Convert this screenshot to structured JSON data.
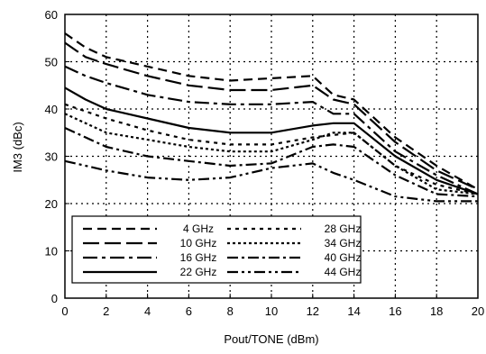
{
  "chart_data": {
    "type": "line",
    "xlabel": "Pout/TONE (dBm)",
    "ylabel": "IM3 (dBc)",
    "xlim": [
      0,
      20
    ],
    "ylim": [
      0,
      60
    ],
    "x_ticks": [
      "0",
      "2",
      "4",
      "6",
      "8",
      "10",
      "12",
      "14",
      "16",
      "18",
      "20"
    ],
    "y_ticks": [
      "0",
      "10",
      "20",
      "30",
      "40",
      "50",
      "60"
    ],
    "grid": true,
    "legend_placement": "bottom-center",
    "series": [
      {
        "name": "4 GHz",
        "dash": "10,6",
        "x": [
          0,
          1,
          2,
          4,
          6,
          8,
          10,
          12,
          13,
          14,
          16,
          18,
          20
        ],
        "y": [
          56,
          53,
          51,
          49,
          47,
          46,
          46.5,
          47,
          43,
          42,
          34,
          28,
          23
        ]
      },
      {
        "name": "10 GHz",
        "dash": "18,6",
        "x": [
          0,
          1,
          2,
          4,
          6,
          8,
          10,
          12,
          13,
          14,
          16,
          18,
          20
        ],
        "y": [
          54,
          51,
          49.5,
          47,
          45,
          44,
          44,
          45,
          42,
          41,
          33,
          27,
          23
        ]
      },
      {
        "name": "16 GHz",
        "dash": "16,5,4,5",
        "x": [
          0,
          1,
          2,
          4,
          6,
          8,
          10,
          12,
          13,
          14,
          16,
          18,
          20
        ],
        "y": [
          49,
          47,
          45.5,
          43,
          41.5,
          41,
          41,
          41.5,
          39,
          39,
          31,
          26,
          22
        ]
      },
      {
        "name": "22 GHz",
        "dash": "",
        "x": [
          0,
          1,
          2,
          4,
          6,
          8,
          10,
          12,
          13,
          14,
          16,
          18,
          20
        ],
        "y": [
          44.5,
          42,
          40,
          38,
          36,
          35,
          35,
          36.5,
          37,
          37,
          30,
          25,
          22
        ]
      },
      {
        "name": "28 GHz",
        "dash": "4,5",
        "x": [
          0,
          1,
          2,
          4,
          6,
          8,
          10,
          12,
          13,
          14,
          16,
          18,
          20
        ],
        "y": [
          41,
          39.5,
          38,
          35.5,
          33.5,
          32.5,
          32.5,
          34,
          34.5,
          35,
          28,
          24,
          22
        ]
      },
      {
        "name": "34 GHz",
        "dash": "3,3",
        "x": [
          0,
          1,
          2,
          4,
          6,
          8,
          10,
          12,
          13,
          14,
          16,
          18,
          20
        ],
        "y": [
          39,
          37,
          35,
          33.5,
          32,
          31,
          31,
          33.5,
          35,
          35,
          28,
          23,
          22
        ]
      },
      {
        "name": "40 GHz",
        "dash": "12,4,3,4",
        "x": [
          0,
          1,
          2,
          4,
          6,
          8,
          10,
          12,
          13,
          14,
          16,
          18,
          20
        ],
        "y": [
          36,
          34,
          32,
          30,
          29,
          28,
          28.5,
          32,
          32.5,
          32,
          26,
          22,
          21.5
        ]
      },
      {
        "name": "44 GHz",
        "dash": "12,4,3,4,3,4",
        "x": [
          0,
          1,
          2,
          4,
          6,
          8,
          10,
          12,
          13,
          14,
          16,
          18,
          20
        ],
        "y": [
          29,
          28,
          27,
          25.5,
          25,
          25.5,
          27.5,
          28.5,
          26.5,
          25,
          21.5,
          20.5,
          20.5
        ]
      }
    ]
  }
}
